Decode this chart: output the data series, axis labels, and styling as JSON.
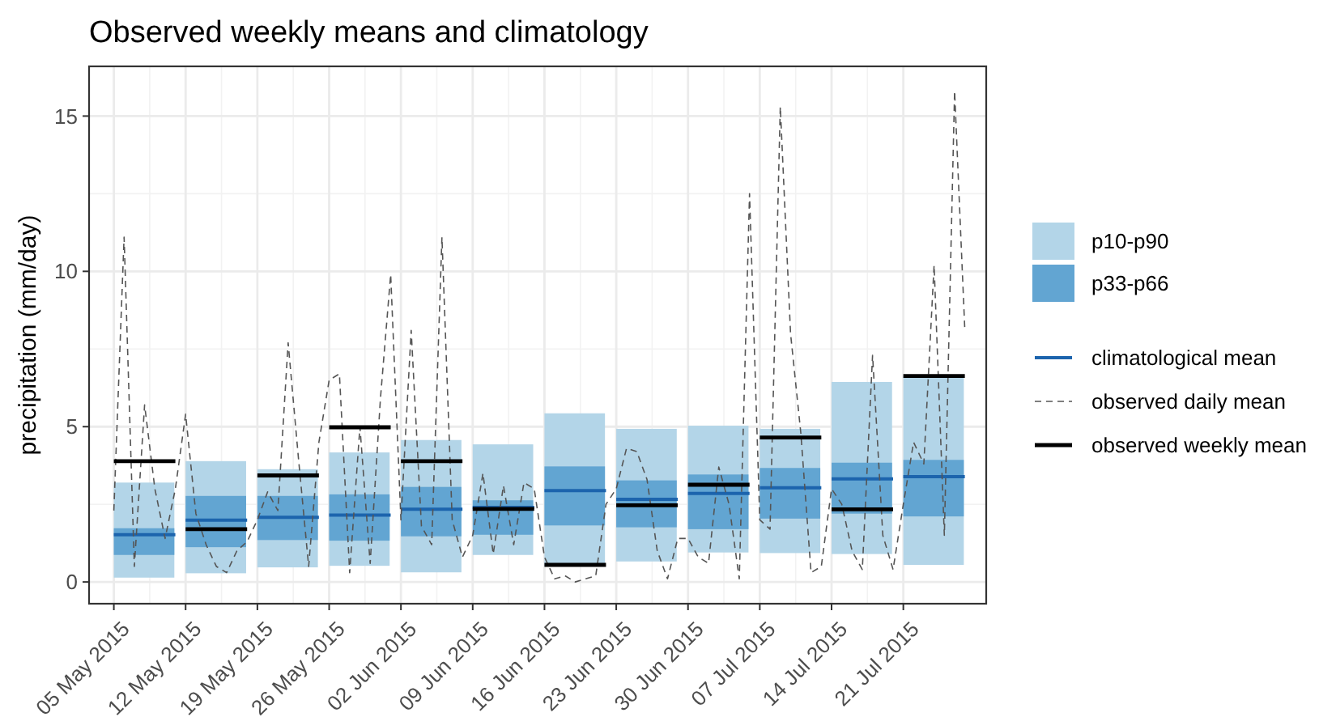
{
  "chart_data": {
    "type": "bar",
    "title": "Observed weekly means and climatology",
    "ylabel": "precipitation (mm/day)",
    "xlim": [
      "2015-05-02T14:00",
      "2015-07-29T02:00"
    ],
    "xticks": [
      {
        "value": "2015-05-05",
        "label": "05 May 2015"
      },
      {
        "value": "2015-05-12",
        "label": "12 May 2015"
      },
      {
        "value": "2015-05-19",
        "label": "19 May 2015"
      },
      {
        "value": "2015-05-26",
        "label": "26 May 2015"
      },
      {
        "value": "2015-06-02",
        "label": "02 Jun 2015"
      },
      {
        "value": "2015-06-09",
        "label": "09 Jun 2015"
      },
      {
        "value": "2015-06-16",
        "label": "16 Jun 2015"
      },
      {
        "value": "2015-06-23",
        "label": "23 Jun 2015"
      },
      {
        "value": "2015-06-30",
        "label": "30 Jun 2015"
      },
      {
        "value": "2015-07-07",
        "label": "07 Jul 2015"
      },
      {
        "value": "2015-07-14",
        "label": "14 Jul 2015"
      },
      {
        "value": "2015-07-21",
        "label": "21 Jul 2015"
      }
    ],
    "ylim": [
      -0.7,
      16.6
    ],
    "yticks": [
      0,
      5,
      10,
      15
    ],
    "grid": true,
    "legend": "right",
    "series": [
      {
        "name": "p10-p90",
        "color": "#b3d5e8",
        "x": [
          "2015-05-05",
          "2015-05-12",
          "2015-05-19",
          "2015-05-26",
          "2015-06-02",
          "2015-06-09",
          "2015-06-16",
          "2015-06-23",
          "2015-06-30",
          "2015-07-07",
          "2015-07-14",
          "2015-07-21"
        ],
        "base": [
          0.14,
          0.28,
          0.47,
          0.52,
          0.31,
          0.87,
          0.5,
          0.66,
          0.95,
          0.93,
          0.9,
          0.55
        ],
        "values": [
          3.06,
          3.61,
          3.16,
          3.65,
          4.26,
          3.56,
          4.93,
          4.27,
          4.08,
          4.0,
          5.54,
          6.08
        ]
      },
      {
        "name": "p33-p66",
        "color": "#62a5d2",
        "x": [
          "2015-05-05",
          "2015-05-12",
          "2015-05-19",
          "2015-05-26",
          "2015-06-02",
          "2015-06-09",
          "2015-06-16",
          "2015-06-23",
          "2015-06-30",
          "2015-07-07",
          "2015-07-14",
          "2015-07-21"
        ],
        "base": [
          0.87,
          1.12,
          1.35,
          1.33,
          1.47,
          1.52,
          1.82,
          1.76,
          1.7,
          2.04,
          2.2,
          2.11
        ],
        "values": [
          0.86,
          1.65,
          1.42,
          1.49,
          1.59,
          1.11,
          1.9,
          1.51,
          1.76,
          1.63,
          1.64,
          1.82
        ]
      },
      {
        "name": "climatological mean",
        "type": "line",
        "color": "#1c64ad",
        "line_style": "solid",
        "x": [
          "2015-05-05",
          "2015-05-11",
          null,
          "2015-05-12",
          "2015-05-18",
          null,
          "2015-05-19",
          "2015-05-25",
          null,
          "2015-05-26",
          "2015-06-01",
          null,
          "2015-06-02",
          "2015-06-08",
          null,
          "2015-06-09",
          "2015-06-15",
          null,
          "2015-06-16",
          "2015-06-22",
          null,
          "2015-06-23",
          "2015-06-29",
          null,
          "2015-06-30",
          "2015-07-06",
          null,
          "2015-07-07",
          "2015-07-13",
          null,
          "2015-07-14",
          "2015-07-20",
          null,
          "2015-07-21",
          "2015-07-27",
          null
        ],
        "values": [
          1.52,
          1.52,
          null,
          1.99,
          1.99,
          null,
          2.08,
          2.08,
          null,
          2.15,
          2.15,
          null,
          2.34,
          2.34,
          null,
          2.4,
          2.4,
          null,
          2.94,
          2.94,
          null,
          2.66,
          2.66,
          null,
          2.85,
          2.85,
          null,
          3.03,
          3.03,
          null,
          3.32,
          3.32,
          null,
          3.39,
          3.39,
          null
        ]
      },
      {
        "name": "observed daily mean",
        "type": "line",
        "color": "#555555",
        "line_style": "dashed",
        "x": [
          "2015-05-05",
          "2015-05-06",
          "2015-05-07",
          "2015-05-08",
          "2015-05-09",
          "2015-05-10",
          "2015-05-11",
          "2015-05-12",
          "2015-05-13",
          "2015-05-14",
          "2015-05-15",
          "2015-05-16",
          "2015-05-17",
          "2015-05-18",
          "2015-05-19",
          "2015-05-20",
          "2015-05-21",
          "2015-05-22",
          "2015-05-23",
          "2015-05-24",
          "2015-05-25",
          "2015-05-26",
          "2015-05-27",
          "2015-05-28",
          "2015-05-29",
          "2015-05-30",
          "2015-05-31",
          "2015-06-01",
          "2015-06-02",
          "2015-06-03",
          "2015-06-04",
          "2015-06-05",
          "2015-06-06",
          "2015-06-07",
          "2015-06-08",
          "2015-06-09",
          "2015-06-10",
          "2015-06-11",
          "2015-06-12",
          "2015-06-13",
          "2015-06-14",
          "2015-06-15",
          "2015-06-16",
          "2015-06-17",
          "2015-06-18",
          "2015-06-19",
          "2015-06-20",
          "2015-06-21",
          "2015-06-22",
          "2015-06-23",
          "2015-06-24",
          "2015-06-25",
          "2015-06-26",
          "2015-06-27",
          "2015-06-28",
          "2015-06-29",
          "2015-06-30",
          "2015-07-01",
          "2015-07-02",
          "2015-07-03",
          "2015-07-04",
          "2015-07-05",
          "2015-07-06",
          "2015-07-07",
          "2015-07-08",
          "2015-07-09",
          "2015-07-10",
          "2015-07-11",
          "2015-07-12",
          "2015-07-13",
          "2015-07-14",
          "2015-07-15",
          "2015-07-16",
          "2015-07-17",
          "2015-07-18",
          "2015-07-19",
          "2015-07-20",
          "2015-07-21",
          "2015-07-22",
          "2015-07-23",
          "2015-07-24",
          "2015-07-25",
          "2015-07-26",
          "2015-07-27"
        ],
        "values": [
          2.3,
          11.1,
          0.5,
          5.7,
          3.0,
          1.4,
          3.0,
          5.4,
          2.2,
          1.2,
          0.5,
          0.3,
          1.0,
          1.3,
          2.0,
          2.9,
          2.3,
          7.7,
          4.0,
          0.5,
          4.5,
          6.5,
          6.7,
          0.3,
          5.0,
          0.6,
          5.9,
          9.9,
          2.0,
          8.1,
          1.8,
          1.2,
          11.1,
          2.0,
          0.8,
          1.5,
          3.5,
          0.9,
          3.1,
          1.2,
          3.2,
          3.0,
          0.8,
          0.1,
          0.2,
          0.0,
          0.1,
          0.2,
          2.5,
          3.0,
          4.3,
          4.2,
          3.3,
          1.0,
          0.1,
          1.4,
          1.4,
          0.8,
          0.6,
          3.7,
          2.5,
          0.1,
          12.5,
          2.0,
          1.7,
          15.3,
          8.0,
          4.8,
          0.3,
          0.5,
          3.0,
          2.5,
          1.0,
          0.4,
          7.3,
          1.5,
          0.4,
          2.5,
          4.5,
          3.8,
          10.2,
          1.5,
          15.8,
          8.1
        ]
      },
      {
        "name": "observed weekly mean",
        "type": "line",
        "color": "#000000",
        "line_style": "solid",
        "x": [
          "2015-05-05",
          "2015-05-11",
          null,
          "2015-05-12",
          "2015-05-18",
          null,
          "2015-05-19",
          "2015-05-25",
          null,
          "2015-05-26",
          "2015-06-01",
          null,
          "2015-06-02",
          "2015-06-08",
          null,
          "2015-06-09",
          "2015-06-15",
          null,
          "2015-06-16",
          "2015-06-22",
          null,
          "2015-06-23",
          "2015-06-29",
          null,
          "2015-06-30",
          "2015-07-06",
          null,
          "2015-07-07",
          "2015-07-13",
          null,
          "2015-07-14",
          "2015-07-20",
          null,
          "2015-07-21",
          "2015-07-27",
          null
        ],
        "values": [
          3.89,
          3.89,
          null,
          1.7,
          1.7,
          null,
          3.43,
          3.43,
          null,
          4.98,
          4.98,
          null,
          3.89,
          3.89,
          null,
          2.35,
          2.35,
          null,
          0.55,
          0.55,
          null,
          2.47,
          2.47,
          null,
          3.13,
          3.13,
          null,
          4.65,
          4.65,
          null,
          2.34,
          2.34,
          null,
          6.63,
          6.63,
          null
        ]
      }
    ]
  }
}
